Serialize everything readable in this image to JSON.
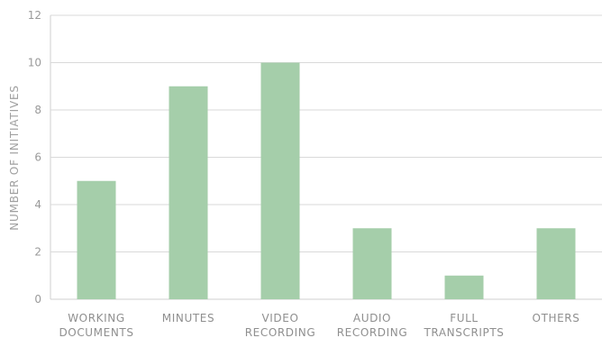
{
  "chart_data": {
    "type": "bar",
    "title": "",
    "xlabel": "",
    "ylabel": "NUMBER OF INITIATIVES",
    "ylim": [
      0,
      12
    ],
    "yticks": [
      0,
      2,
      4,
      6,
      8,
      10,
      12
    ],
    "grid": true,
    "categories": [
      [
        "WORKING",
        "DOCUMENTS"
      ],
      [
        "MINUTES"
      ],
      [
        "VIDEO",
        "RECORDING"
      ],
      [
        "AUDIO",
        "RECORDING"
      ],
      [
        "FULL",
        "TRANSCRIPTS"
      ],
      [
        "OTHERS"
      ]
    ],
    "values": [
      5,
      9,
      10,
      3,
      1,
      3
    ],
    "bar_color": "#a5ceaa"
  }
}
